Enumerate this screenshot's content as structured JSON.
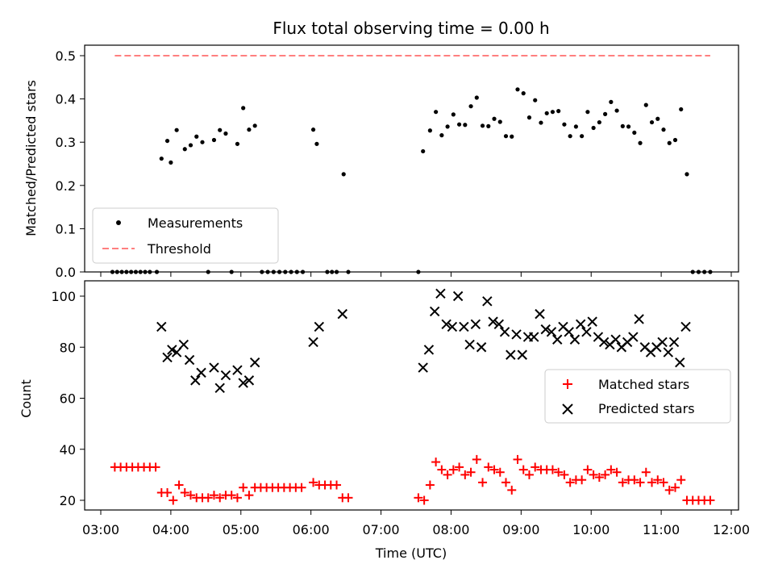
{
  "colors": {
    "measurements": "#000000",
    "threshold": "#ff7f7f",
    "matched": "#ff0000",
    "predicted": "#000000"
  },
  "chart_data": [
    {
      "type": "scatter",
      "title": "Flux total observing time = 0.00 h",
      "xlabel": "",
      "ylabel": "Matched/Predicted stars",
      "ylim": [
        0,
        0.53
      ],
      "y_ticks": [
        "0.0",
        "0.1",
        "0.2",
        "0.3",
        "0.4",
        "0.5"
      ],
      "legend_position": "lower-left",
      "grid": false,
      "series": [
        {
          "name": "Measurements",
          "marker": "dot",
          "points": [
            [
              "03:10",
              0
            ],
            [
              "03:14",
              0
            ],
            [
              "03:18",
              0
            ],
            [
              "03:22",
              0
            ],
            [
              "03:26",
              0
            ],
            [
              "03:30",
              0
            ],
            [
              "03:34",
              0
            ],
            [
              "03:38",
              0
            ],
            [
              "03:42",
              0
            ],
            [
              "03:48",
              0
            ],
            [
              "03:52",
              0.262
            ],
            [
              "03:57",
              0.303
            ],
            [
              "04:00",
              0.253
            ],
            [
              "04:05",
              0.328
            ],
            [
              "04:12",
              0.284
            ],
            [
              "04:17",
              0.293
            ],
            [
              "04:22",
              0.313
            ],
            [
              "04:27",
              0.3
            ],
            [
              "04:32",
              0
            ],
            [
              "04:37",
              0.305
            ],
            [
              "04:42",
              0.328
            ],
            [
              "04:47",
              0.32
            ],
            [
              "04:52",
              0
            ],
            [
              "04:57",
              0.296
            ],
            [
              "05:02",
              0.379
            ],
            [
              "05:07",
              0.329
            ],
            [
              "05:12",
              0.338
            ],
            [
              "05:18",
              0
            ],
            [
              "05:23",
              0
            ],
            [
              "05:28",
              0
            ],
            [
              "05:33",
              0
            ],
            [
              "05:38",
              0
            ],
            [
              "05:43",
              0
            ],
            [
              "05:48",
              0
            ],
            [
              "05:53",
              0
            ],
            [
              "06:02",
              0.329
            ],
            [
              "06:05",
              0.296
            ],
            [
              "06:14",
              0
            ],
            [
              "06:18",
              0
            ],
            [
              "06:22",
              0
            ],
            [
              "06:28",
              0.226
            ],
            [
              "06:32",
              0
            ],
            [
              "07:32",
              0
            ],
            [
              "07:36",
              0.279
            ],
            [
              "07:42",
              0.327
            ],
            [
              "07:47",
              0.37
            ],
            [
              "07:52",
              0.316
            ],
            [
              "07:57",
              0.336
            ],
            [
              "08:02",
              0.364
            ],
            [
              "08:07",
              0.341
            ],
            [
              "08:12",
              0.34
            ],
            [
              "08:17",
              0.383
            ],
            [
              "08:22",
              0.403
            ],
            [
              "08:27",
              0.338
            ],
            [
              "08:32",
              0.337
            ],
            [
              "08:37",
              0.354
            ],
            [
              "08:42",
              0.347
            ],
            [
              "08:47",
              0.314
            ],
            [
              "08:52",
              0.313
            ],
            [
              "08:57",
              0.422
            ],
            [
              "09:02",
              0.413
            ],
            [
              "09:07",
              0.357
            ],
            [
              "09:12",
              0.397
            ],
            [
              "09:17",
              0.345
            ],
            [
              "09:22",
              0.367
            ],
            [
              "09:27",
              0.37
            ],
            [
              "09:32",
              0.372
            ],
            [
              "09:37",
              0.341
            ],
            [
              "09:42",
              0.314
            ],
            [
              "09:47",
              0.336
            ],
            [
              "09:52",
              0.314
            ],
            [
              "09:57",
              0.37
            ],
            [
              "10:02",
              0.333
            ],
            [
              "10:07",
              0.346
            ],
            [
              "10:12",
              0.365
            ],
            [
              "10:17",
              0.393
            ],
            [
              "10:22",
              0.373
            ],
            [
              "10:27",
              0.337
            ],
            [
              "10:32",
              0.336
            ],
            [
              "10:37",
              0.322
            ],
            [
              "10:42",
              0.298
            ],
            [
              "10:47",
              0.386
            ],
            [
              "10:52",
              0.346
            ],
            [
              "10:57",
              0.354
            ],
            [
              "11:02",
              0.329
            ],
            [
              "11:07",
              0.298
            ],
            [
              "11:12",
              0.305
            ],
            [
              "11:17",
              0.376
            ],
            [
              "11:22",
              0.226
            ],
            [
              "11:27",
              0
            ],
            [
              "11:32",
              0
            ],
            [
              "11:37",
              0
            ],
            [
              "11:42",
              0
            ]
          ]
        },
        {
          "name": "Threshold",
          "style": "dashed",
          "points": [
            [
              "03:12",
              0.5
            ],
            [
              "11:42",
              0.5
            ]
          ]
        }
      ]
    },
    {
      "type": "scatter",
      "title": "",
      "xlabel": "Time (UTC)",
      "ylabel": "Count",
      "ylim": [
        16,
        105
      ],
      "y_ticks": [
        "20",
        "40",
        "60",
        "80",
        "100"
      ],
      "x_ticks": [
        "03:00",
        "04:00",
        "05:00",
        "06:00",
        "07:00",
        "08:00",
        "09:00",
        "10:00",
        "11:00",
        "12:00"
      ],
      "legend_position": "center-right",
      "grid": false,
      "series": [
        {
          "name": "Matched stars",
          "marker": "plus",
          "points": [
            [
              "03:12",
              33
            ],
            [
              "03:17",
              33
            ],
            [
              "03:22",
              33
            ],
            [
              "03:27",
              33
            ],
            [
              "03:32",
              33
            ],
            [
              "03:37",
              33
            ],
            [
              "03:42",
              33
            ],
            [
              "03:47",
              33
            ],
            [
              "03:52",
              23
            ],
            [
              "03:57",
              23
            ],
            [
              "04:02",
              20
            ],
            [
              "04:07",
              26
            ],
            [
              "04:12",
              23
            ],
            [
              "04:17",
              22
            ],
            [
              "04:22",
              21
            ],
            [
              "04:27",
              21
            ],
            [
              "04:32",
              21
            ],
            [
              "04:37",
              22
            ],
            [
              "04:42",
              21
            ],
            [
              "04:47",
              22
            ],
            [
              "04:52",
              22
            ],
            [
              "04:57",
              21
            ],
            [
              "05:02",
              25
            ],
            [
              "05:07",
              22
            ],
            [
              "05:12",
              25
            ],
            [
              "05:17",
              25
            ],
            [
              "05:22",
              25
            ],
            [
              "05:27",
              25
            ],
            [
              "05:32",
              25
            ],
            [
              "05:37",
              25
            ],
            [
              "05:42",
              25
            ],
            [
              "05:47",
              25
            ],
            [
              "05:52",
              25
            ],
            [
              "06:02",
              27
            ],
            [
              "06:07",
              26
            ],
            [
              "06:12",
              26
            ],
            [
              "06:17",
              26
            ],
            [
              "06:22",
              26
            ],
            [
              "06:27",
              21
            ],
            [
              "06:32",
              21
            ],
            [
              "07:32",
              21
            ],
            [
              "07:37",
              20
            ],
            [
              "07:42",
              26
            ],
            [
              "07:47",
              35
            ],
            [
              "07:52",
              32
            ],
            [
              "07:57",
              30
            ],
            [
              "08:02",
              32
            ],
            [
              "08:07",
              33
            ],
            [
              "08:12",
              30
            ],
            [
              "08:17",
              31
            ],
            [
              "08:22",
              36
            ],
            [
              "08:27",
              27
            ],
            [
              "08:32",
              33
            ],
            [
              "08:37",
              32
            ],
            [
              "08:42",
              31
            ],
            [
              "08:47",
              27
            ],
            [
              "08:52",
              24
            ],
            [
              "08:57",
              36
            ],
            [
              "09:02",
              32
            ],
            [
              "09:07",
              30
            ],
            [
              "09:12",
              33
            ],
            [
              "09:17",
              32
            ],
            [
              "09:22",
              32
            ],
            [
              "09:27",
              32
            ],
            [
              "09:32",
              31
            ],
            [
              "09:37",
              30
            ],
            [
              "09:42",
              27
            ],
            [
              "09:47",
              28
            ],
            [
              "09:52",
              28
            ],
            [
              "09:57",
              32
            ],
            [
              "10:02",
              30
            ],
            [
              "10:07",
              29
            ],
            [
              "10:12",
              30
            ],
            [
              "10:17",
              32
            ],
            [
              "10:22",
              31
            ],
            [
              "10:27",
              27
            ],
            [
              "10:32",
              28
            ],
            [
              "10:37",
              28
            ],
            [
              "10:42",
              27
            ],
            [
              "10:47",
              31
            ],
            [
              "10:52",
              27
            ],
            [
              "10:57",
              28
            ],
            [
              "11:02",
              27
            ],
            [
              "11:07",
              24
            ],
            [
              "11:12",
              25
            ],
            [
              "11:17",
              28
            ],
            [
              "11:22",
              20
            ],
            [
              "11:27",
              20
            ],
            [
              "11:32",
              20
            ],
            [
              "11:37",
              20
            ],
            [
              "11:42",
              20
            ]
          ]
        },
        {
          "name": "Predicted stars",
          "marker": "x",
          "points": [
            [
              "03:52",
              88
            ],
            [
              "03:57",
              76
            ],
            [
              "04:01",
              79
            ],
            [
              "04:05",
              78
            ],
            [
              "04:11",
              81
            ],
            [
              "04:16",
              75
            ],
            [
              "04:21",
              67
            ],
            [
              "04:26",
              70
            ],
            [
              "04:37",
              72
            ],
            [
              "04:42",
              64
            ],
            [
              "04:47",
              69
            ],
            [
              "04:57",
              71
            ],
            [
              "05:02",
              66
            ],
            [
              "05:07",
              67
            ],
            [
              "05:12",
              74
            ],
            [
              "06:02",
              82
            ],
            [
              "06:07",
              88
            ],
            [
              "06:27",
              93
            ],
            [
              "07:36",
              72
            ],
            [
              "07:41",
              79
            ],
            [
              "07:46",
              94
            ],
            [
              "07:51",
              101
            ],
            [
              "07:56",
              89
            ],
            [
              "08:01",
              88
            ],
            [
              "08:06",
              100
            ],
            [
              "08:11",
              88
            ],
            [
              "08:16",
              81
            ],
            [
              "08:21",
              89
            ],
            [
              "08:26",
              80
            ],
            [
              "08:31",
              98
            ],
            [
              "08:36",
              90
            ],
            [
              "08:41",
              89
            ],
            [
              "08:46",
              86
            ],
            [
              "08:51",
              77
            ],
            [
              "08:56",
              85
            ],
            [
              "09:01",
              77
            ],
            [
              "09:06",
              84
            ],
            [
              "09:11",
              84
            ],
            [
              "09:16",
              93
            ],
            [
              "09:21",
              87
            ],
            [
              "09:26",
              86
            ],
            [
              "09:31",
              83
            ],
            [
              "09:36",
              88
            ],
            [
              "09:41",
              86
            ],
            [
              "09:46",
              83
            ],
            [
              "09:51",
              89
            ],
            [
              "09:56",
              86
            ],
            [
              "10:01",
              90
            ],
            [
              "10:06",
              84
            ],
            [
              "10:11",
              82
            ],
            [
              "10:16",
              81
            ],
            [
              "10:21",
              83
            ],
            [
              "10:26",
              80
            ],
            [
              "10:31",
              82
            ],
            [
              "10:36",
              84
            ],
            [
              "10:41",
              91
            ],
            [
              "10:46",
              80
            ],
            [
              "10:51",
              78
            ],
            [
              "10:56",
              80
            ],
            [
              "11:01",
              82
            ],
            [
              "11:06",
              78
            ],
            [
              "11:11",
              82
            ],
            [
              "11:16",
              74
            ],
            [
              "11:21",
              88
            ]
          ]
        }
      ]
    }
  ]
}
